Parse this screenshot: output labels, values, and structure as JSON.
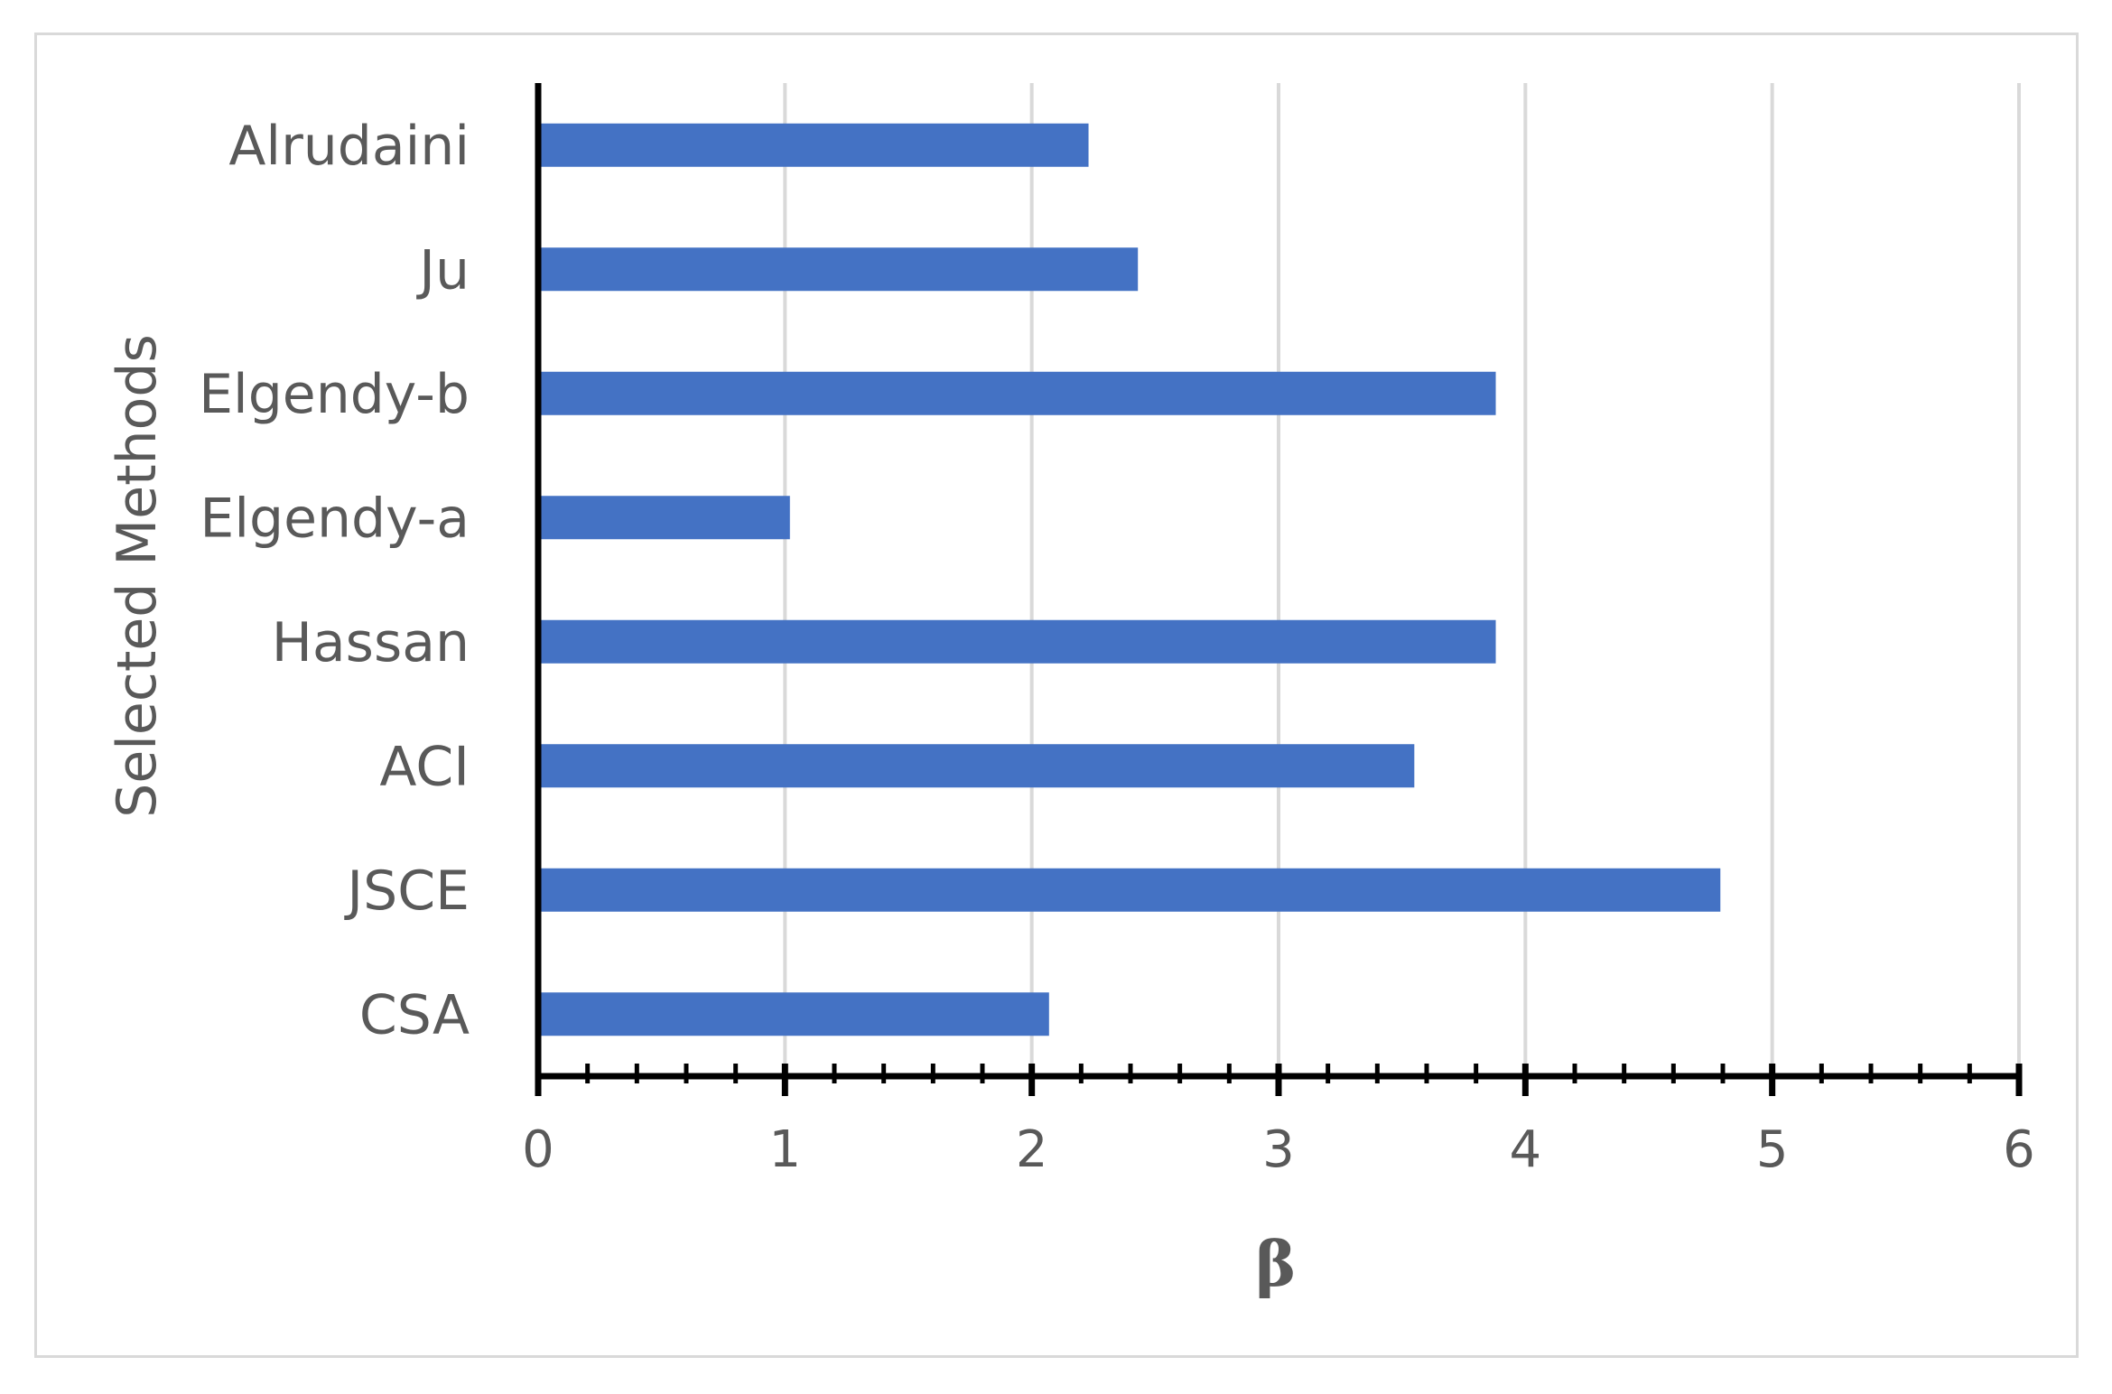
{
  "chart_data": {
    "type": "bar",
    "orientation": "horizontal",
    "categories": [
      "Alrudaini",
      "Ju",
      "Elgendy-b",
      "Elgendy-a",
      "Hassan",
      "ACI",
      "JSCE",
      "CSA"
    ],
    "values": [
      2.23,
      2.43,
      3.88,
      1.02,
      3.88,
      3.55,
      4.79,
      2.07
    ],
    "xlabel": "β",
    "ylabel": "Selected Methods",
    "xlim": [
      0,
      6
    ],
    "xticks": [
      "0",
      "1",
      "2",
      "3",
      "4",
      "5",
      "6"
    ],
    "grid": "vertical",
    "legend": "none",
    "bar_color": "#4472C4"
  }
}
